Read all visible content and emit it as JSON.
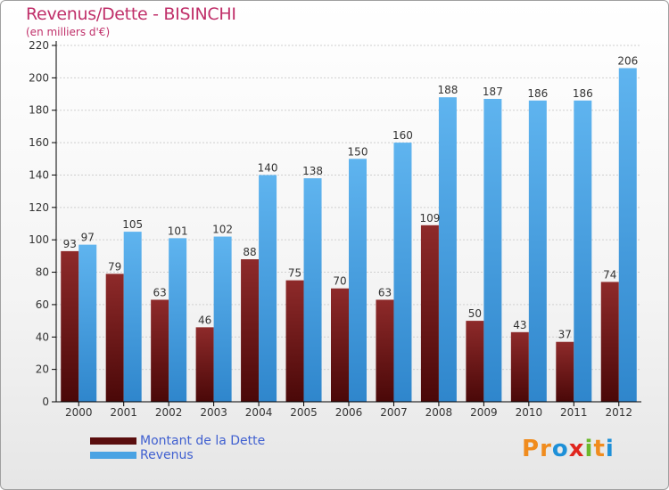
{
  "title": "Revenus/Dette - BISINCHI",
  "subtitle": "(en milliers d'€)",
  "logo": {
    "letters": [
      "P",
      "r",
      "o",
      "x",
      "i",
      "t",
      "i"
    ],
    "colors": [
      "#f08c1e",
      "#f08c1e",
      "#1e90d8",
      "#e0261e",
      "#6cb82c",
      "#f08c1e",
      "#1e90d8"
    ]
  },
  "colors": {
    "dette": "#6b1616",
    "revenus": "#4aa3e3",
    "grid": "#cfcfcf",
    "axis": "#000000"
  },
  "chart_data": {
    "type": "bar",
    "title": "Revenus/Dette - BISINCHI",
    "subtitle": "(en milliers d'€)",
    "categories": [
      "2000",
      "2001",
      "2002",
      "2003",
      "2004",
      "2005",
      "2006",
      "2007",
      "2008",
      "2009",
      "2010",
      "2011",
      "2012"
    ],
    "series": [
      {
        "name": "Montant de la Dette",
        "values": [
          93,
          79,
          63,
          46,
          88,
          75,
          70,
          63,
          109,
          50,
          43,
          37,
          74
        ]
      },
      {
        "name": "Revenus",
        "values": [
          97,
          105,
          101,
          102,
          140,
          138,
          150,
          160,
          188,
          187,
          186,
          186,
          206
        ]
      }
    ],
    "ylim": [
      0,
      220
    ],
    "yticks": [
      0,
      20,
      40,
      60,
      80,
      100,
      120,
      140,
      160,
      180,
      200,
      220
    ],
    "grid": true,
    "legend": "bottom-left"
  }
}
